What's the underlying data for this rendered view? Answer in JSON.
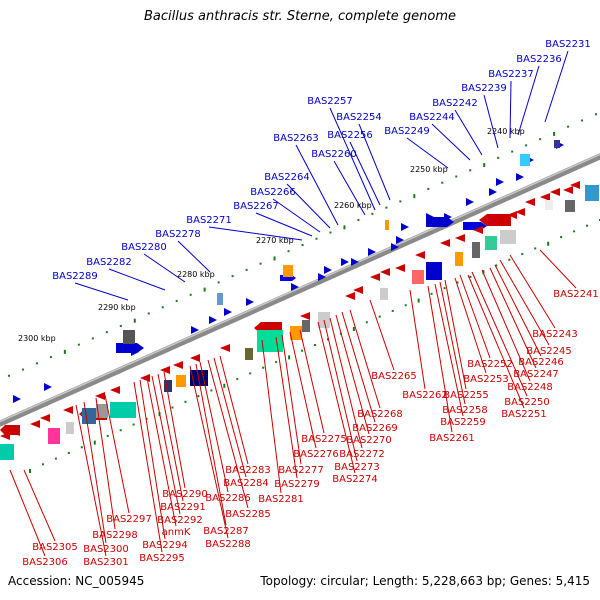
{
  "title": "Bacillus anthracis str. Sterne, complete genome",
  "accession": "Accession: NC_005945",
  "summary": "Topology: circular; Length: 5,228,663 bp; Genes: 5,415",
  "colors": {
    "forward": "#0000cc",
    "reverse": "#cc0000",
    "backbone": "#8a8a8a",
    "tick": "#1a7a1a"
  },
  "scale_labels": [
    "2240 kbp",
    "2250 kbp",
    "2260 kbp",
    "2270 kbp",
    "2280 kbp",
    "2290 kbp",
    "2300 kbp"
  ],
  "forward_genes": [
    "BAS2231",
    "BAS2236",
    "BAS2237",
    "BAS2239",
    "BAS2242",
    "BAS2244",
    "BAS2249",
    "BAS2254",
    "BAS2256",
    "BAS2257",
    "BAS2260",
    "BAS2263",
    "BAS2264",
    "BAS2266",
    "BAS2267",
    "BAS2271",
    "BAS2278",
    "BAS2280",
    "BAS2282",
    "BAS2289"
  ],
  "reverse_genes": [
    "BAS2241",
    "BAS2243",
    "BAS2245",
    "BAS2246",
    "BAS2247",
    "BAS2248",
    "BAS2250",
    "BAS2251",
    "BAS2252",
    "BAS2253",
    "BAS2255",
    "BAS2258",
    "BAS2259",
    "BAS2261",
    "BAS2262",
    "BAS2265",
    "BAS2268",
    "BAS2269",
    "BAS2270",
    "BAS2272",
    "BAS2273",
    "BAS2274",
    "BAS2275",
    "BAS2276",
    "BAS2277",
    "BAS2279",
    "BAS2281",
    "BAS2283",
    "BAS2284",
    "BAS2285",
    "BAS2286",
    "BAS2287",
    "BAS2288",
    "BAS2290",
    "BAS2291",
    "BAS2292",
    "anmK",
    "BAS2294",
    "BAS2295",
    "BAS2297",
    "BAS2298",
    "BAS2300",
    "BAS2301",
    "BAS2305",
    "BAS2306"
  ]
}
